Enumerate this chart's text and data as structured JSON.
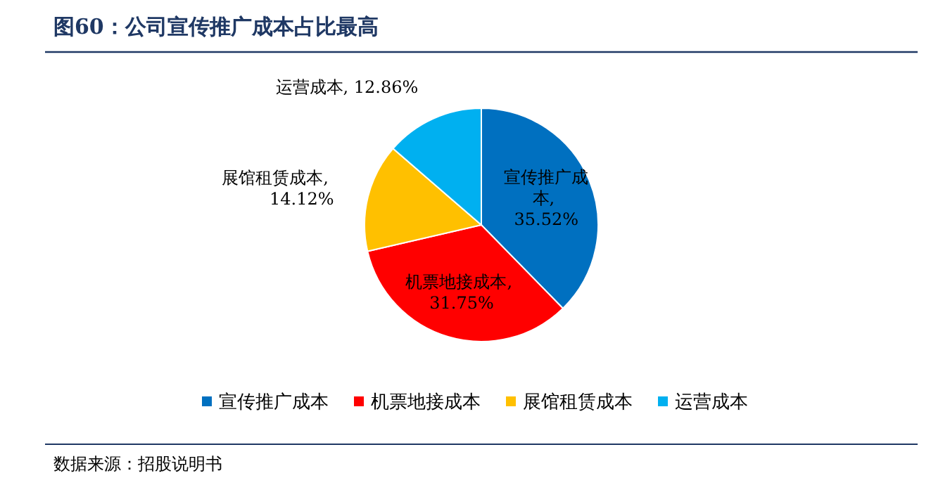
{
  "chart_data": {
    "type": "pie",
    "title": "图60：公司宣传推广成本占比最高",
    "categories": [
      "宣传推广成本",
      "机票地接成本",
      "展馆租赁成本",
      "运营成本"
    ],
    "values": [
      35.52,
      31.75,
      14.12,
      12.86
    ],
    "value_labels": [
      "宣传推广成本, 35.52%",
      "机票地接成本, 31.75%",
      "展馆租赁成本, 14.12%",
      "运营成本, 12.86%"
    ],
    "colors": [
      "#0070c0",
      "#ff0000",
      "#ffc000",
      "#00b0f0"
    ],
    "legend": "bottom",
    "annotations": [
      "数据来源：招股说明书"
    ]
  }
}
